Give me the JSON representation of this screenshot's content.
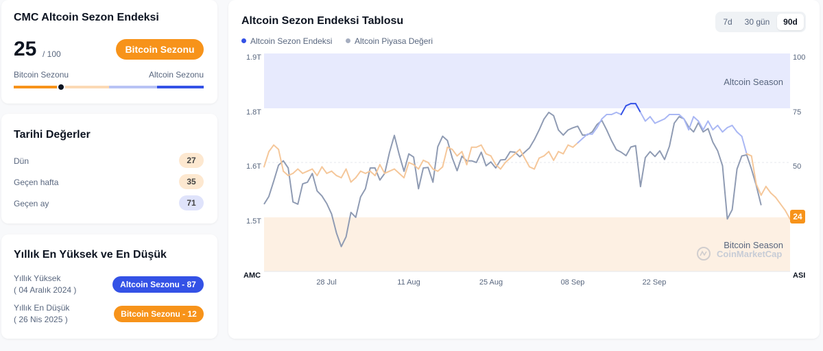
{
  "index_card": {
    "title": "CMC Altcoin Sezon Endeksi",
    "value": "25",
    "max": "/ 100",
    "status_button": "Bitcoin Sezonu",
    "left_label": "Bitcoin Sezonu",
    "right_label": "Altcoin Sezonu",
    "gauge_position": 25
  },
  "historical": {
    "title": "Tarihi Değerler",
    "rows": [
      {
        "label": "Dün",
        "value": "27",
        "color": "#fde8d0"
      },
      {
        "label": "Geçen hafta",
        "value": "35",
        "color": "#fde8d0"
      },
      {
        "label": "Geçen ay",
        "value": "71",
        "color": "#dfe3fb"
      }
    ]
  },
  "yearly": {
    "title": "Yıllık En Yüksek ve En Düşük",
    "high_label": "Yıllık Yüksek",
    "high_date": "( 04 Aralık 2024 )",
    "high_badge": "Altcoin Sezonu - 87",
    "low_label": "Yıllık En Düşük",
    "low_date": "( 26 Nis 2025 )",
    "low_badge": "Bitcoin Sezonu - 12"
  },
  "chart_panel": {
    "title": "Altcoin Sezon Endeksi Tablosu",
    "tabs": [
      "7d",
      "30 gün",
      "90d"
    ],
    "active_tab": "90d",
    "legend": [
      "Altcoin Sezon Endeksi",
      "Altcoin Piyasa Değeri"
    ],
    "zone_top_label": "Altcoin Season",
    "zone_bottom_label": "Bitcoin Season",
    "watermark": "CoinMarketCap",
    "left_axis_title": "AMC",
    "right_axis_title": "ASI",
    "current_badge": "24"
  },
  "colors": {
    "bitcoin_orange": "#f7931a",
    "altcoin_blue": "#3452e6",
    "index_line": "#f5c79a",
    "index_line_high": "#a9b7f4",
    "mcap_line": "#8f9bb3",
    "bitcoin_zone": "#fdf0e3",
    "altcoin_zone": "#e7eafd"
  },
  "chart_data": {
    "type": "line",
    "x_tick_labels": [
      "28 Jul",
      "11 Aug",
      "25 Aug",
      "08 Sep",
      "22 Sep"
    ],
    "y_left_ticks": [
      "1.9T",
      "1.8T",
      "1.6T",
      "1.5T"
    ],
    "y_right_ticks": [
      "100",
      "75",
      "50"
    ],
    "y_right_range": [
      0,
      100
    ],
    "y_left_range": [
      1.4,
      1.9
    ],
    "zones": {
      "altcoin_season_min": 75,
      "bitcoin_season_max": 25
    },
    "series": [
      {
        "name": "Altcoin Sezon Endeksi",
        "axis": "right",
        "values": [
          48,
          55,
          58,
          56,
          46,
          44,
          45,
          47,
          45,
          46,
          47,
          44,
          48,
          45,
          46,
          44,
          43,
          47,
          41,
          43,
          46,
          45,
          46,
          44,
          49,
          45,
          46,
          47,
          45,
          43,
          50,
          49,
          47,
          51,
          50,
          47,
          46,
          48,
          57,
          56,
          53,
          55,
          49,
          57,
          57,
          58,
          54,
          53,
          49,
          47,
          50,
          52,
          54,
          56,
          52,
          48,
          47,
          52,
          53,
          55,
          51,
          55,
          54,
          58,
          57,
          59,
          61,
          63,
          63,
          66,
          70,
          72,
          72,
          73,
          72,
          76,
          77,
          77,
          73,
          69,
          71,
          68,
          69,
          70,
          72,
          72,
          72,
          70,
          65,
          71,
          69,
          65,
          69,
          65,
          67,
          64,
          66,
          67,
          64,
          62,
          54,
          53,
          40,
          35,
          39,
          36,
          34,
          31,
          28,
          24
        ]
      },
      {
        "name": "Altcoin Piyasa Değeri",
        "axis": "left",
        "values": [
          1.524,
          1.538,
          1.566,
          1.595,
          1.606,
          1.59,
          1.528,
          1.524,
          1.561,
          1.564,
          1.58,
          1.548,
          1.539,
          1.525,
          1.506,
          1.471,
          1.446,
          1.464,
          1.509,
          1.5,
          1.537,
          1.552,
          1.59,
          1.59,
          1.568,
          1.58,
          1.638,
          1.7,
          1.63,
          1.584,
          1.632,
          1.62,
          1.552,
          1.59,
          1.591,
          1.564,
          1.658,
          1.697,
          1.681,
          1.617,
          1.585,
          1.623,
          1.606,
          1.606,
          1.6,
          1.638,
          1.594,
          1.602,
          1.59,
          1.609,
          1.611,
          1.64,
          1.638,
          1.621,
          1.638,
          1.654,
          1.684,
          1.72,
          1.76,
          1.785,
          1.773,
          1.72,
          1.701,
          1.72,
          1.728,
          1.734,
          1.701,
          1.702,
          1.713,
          1.74,
          1.755,
          1.72,
          1.681,
          1.647,
          1.638,
          1.625,
          1.657,
          1.662,
          1.556,
          1.618,
          1.64,
          1.622,
          1.643,
          1.611,
          1.66,
          1.745,
          1.769,
          1.761,
          1.731,
          1.713,
          1.747,
          1.713,
          1.725,
          1.675,
          1.643,
          1.594,
          1.497,
          1.514,
          1.588,
          1.624,
          1.628,
          1.588,
          1.558,
          1.522
        ]
      }
    ]
  }
}
